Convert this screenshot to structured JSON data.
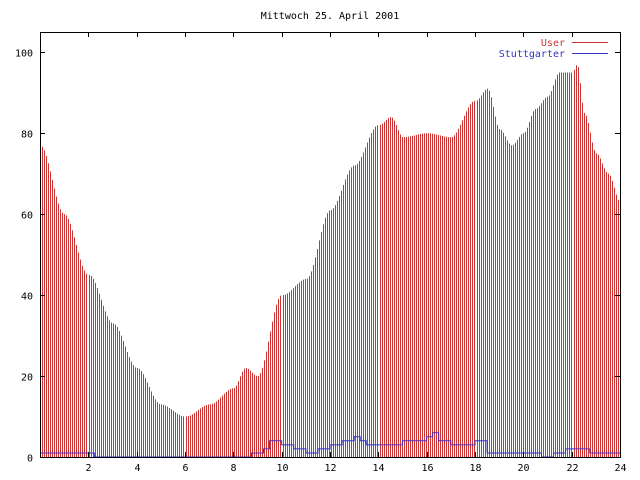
{
  "chart_data": {
    "type": "bar",
    "title": "Mittwoch 25. April 2001",
    "xlabel": "",
    "ylabel": "",
    "xlim": [
      0,
      24
    ],
    "ylim": [
      0,
      105
    ],
    "grid": false,
    "legend_position": "top-right",
    "x_ticks": [
      2,
      4,
      6,
      8,
      10,
      12,
      14,
      16,
      18,
      20,
      22,
      24
    ],
    "y_ticks": [
      0,
      20,
      40,
      60,
      80,
      100
    ],
    "x_tick_labels": [
      "2",
      "4",
      "6",
      "8",
      "10",
      "12",
      "14",
      "16",
      "18",
      "20",
      "22",
      "24"
    ],
    "y_tick_labels": [
      "0",
      "20",
      "40",
      "60",
      "80",
      "100"
    ],
    "series": [
      {
        "name": "User",
        "type": "impulses",
        "color": "#cc3333",
        "x": [
          0.0,
          1.0,
          2.0,
          3.0,
          4.0,
          5.0,
          6.0,
          7.0,
          8.0,
          8.5,
          9.0,
          10.0,
          11.0,
          12.0,
          13.0,
          14.0,
          14.5,
          15.0,
          16.0,
          17.0,
          18.0,
          18.5,
          19.0,
          19.5,
          20.0,
          20.5,
          21.0,
          21.5,
          22.0,
          22.2,
          22.5,
          23.0,
          23.5,
          24.0
        ],
        "values": [
          77,
          60,
          45,
          33,
          22,
          13,
          10,
          13,
          17,
          22,
          20,
          40,
          44,
          61,
          72,
          82,
          84,
          79,
          80,
          79,
          88,
          91,
          81,
          77,
          80,
          86,
          89,
          95,
          95,
          97,
          85,
          75,
          70,
          63
        ]
      },
      {
        "name": "Stuttgarter",
        "type": "step",
        "color": "#3333cc",
        "x": [
          0.0,
          2.25,
          8.75,
          9.25,
          9.5,
          10.0,
          10.5,
          11.0,
          11.5,
          12.0,
          12.5,
          13.0,
          13.25,
          13.5,
          14.0,
          14.5,
          15.0,
          16.0,
          16.25,
          16.5,
          17.0,
          17.5,
          18.0,
          18.5,
          19.0,
          20.0,
          20.75,
          21.25,
          21.75,
          22.75,
          24.0
        ],
        "values": [
          1,
          0,
          1,
          2,
          4,
          3,
          2,
          1,
          2,
          3,
          4,
          5,
          4,
          3,
          3,
          3,
          4,
          5,
          6,
          4,
          3,
          3,
          4,
          1,
          1,
          1,
          0,
          1,
          2,
          1,
          1
        ]
      }
    ]
  }
}
